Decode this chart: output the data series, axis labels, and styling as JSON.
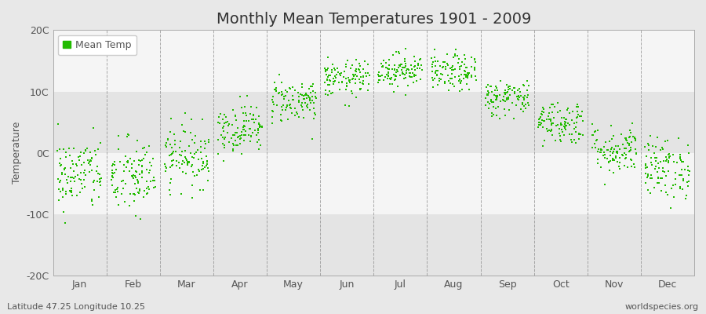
{
  "title": "Monthly Mean Temperatures 1901 - 2009",
  "ylabel": "Temperature",
  "xlabel_months": [
    "Jan",
    "Feb",
    "Mar",
    "Apr",
    "May",
    "Jun",
    "Jul",
    "Aug",
    "Sep",
    "Oct",
    "Nov",
    "Dec"
  ],
  "yticks": [
    -20,
    -10,
    0,
    10,
    20
  ],
  "ytick_labels": [
    "-20C",
    "-10C",
    "0C",
    "10C",
    "20C"
  ],
  "ylim": [
    -20,
    20
  ],
  "years": 109,
  "start_year": 1901,
  "end_year": 2009,
  "monthly_mean": [
    -3.5,
    -4.0,
    -0.5,
    4.0,
    8.5,
    12.0,
    13.5,
    13.0,
    9.0,
    5.0,
    0.5,
    -2.5
  ],
  "monthly_std": [
    3.0,
    3.2,
    2.5,
    2.0,
    1.8,
    1.5,
    1.4,
    1.5,
    1.5,
    1.8,
    2.0,
    2.5
  ],
  "point_color": "#22bb00",
  "point_size": 3,
  "background_color": "#e8e8e8",
  "band_color_light": "#f5f5f5",
  "band_color_dark": "#e4e4e4",
  "legend_label": "Mean Temp",
  "bottom_left_text": "Latitude 47.25 Longitude 10.25",
  "bottom_right_text": "worldspecies.org",
  "font_color": "#555555",
  "dashed_line_color": "#888888",
  "title_fontsize": 14,
  "axis_fontsize": 9,
  "annotation_fontsize": 8,
  "seed": 42
}
